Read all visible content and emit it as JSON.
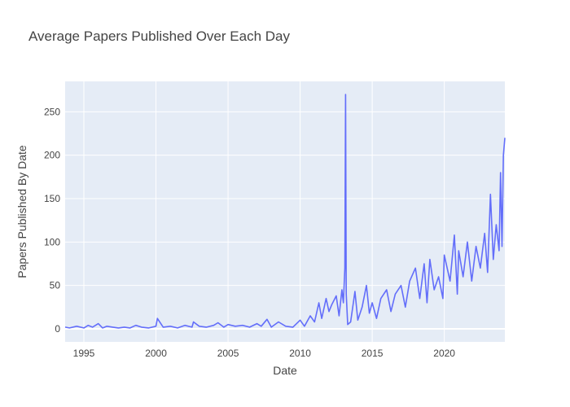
{
  "chart_data": {
    "type": "line",
    "title": "Average Papers Published Over Each Day",
    "xlabel": "Date",
    "ylabel": "Papers Published By Date",
    "xlim": [
      1993.7,
      2024.2
    ],
    "ylim": [
      -15,
      285
    ],
    "x_ticks": [
      1995,
      2000,
      2005,
      2010,
      2015,
      2020
    ],
    "y_ticks": [
      0,
      50,
      100,
      150,
      200,
      250
    ],
    "grid": true,
    "legend": "none",
    "colors": {
      "line": "#636efa",
      "plot_bg": "#e5ecf6",
      "grid": "#ffffff",
      "text": "#444444"
    },
    "series": [
      {
        "x": [
          1993.7,
          1994.0,
          1994.5,
          1995.0,
          1995.3,
          1995.6,
          1996.0,
          1996.3,
          1996.6,
          1997.0,
          1997.4,
          1997.8,
          1998.2,
          1998.6,
          1999.0,
          1999.5,
          2000.0,
          2000.1,
          2000.5,
          2001.0,
          2001.5,
          2002.0,
          2002.5,
          2002.6,
          2003.0,
          2003.5,
          2004.0,
          2004.3,
          2004.7,
          2005.0,
          2005.5,
          2006.0,
          2006.5,
          2007.0,
          2007.3,
          2007.7,
          2008.0,
          2008.5,
          2009.0,
          2009.5,
          2010.0,
          2010.3,
          2010.7,
          2011.0,
          2011.3,
          2011.5,
          2011.8,
          2012.0,
          2012.2,
          2012.5,
          2012.7,
          2012.9,
          2013.0,
          2013.1,
          2013.15,
          2013.2,
          2013.3,
          2013.5,
          2013.8,
          2014.0,
          2014.3,
          2014.6,
          2014.8,
          2015.0,
          2015.3,
          2015.6,
          2016.0,
          2016.3,
          2016.6,
          2017.0,
          2017.3,
          2017.6,
          2018.0,
          2018.3,
          2018.6,
          2018.8,
          2019.0,
          2019.3,
          2019.6,
          2019.9,
          2020.0,
          2020.4,
          2020.7,
          2020.9,
          2021.0,
          2021.3,
          2021.6,
          2021.9,
          2022.2,
          2022.5,
          2022.8,
          2023.0,
          2023.2,
          2023.4,
          2023.6,
          2023.8,
          2023.9,
          2024.0,
          2024.1,
          2024.2
        ],
        "y": [
          2,
          1,
          3,
          1,
          4,
          2,
          6,
          1,
          3,
          2,
          1,
          2,
          1,
          4,
          2,
          1,
          3,
          12,
          2,
          3,
          1,
          4,
          2,
          8,
          3,
          2,
          4,
          7,
          2,
          5,
          3,
          4,
          2,
          6,
          3,
          11,
          2,
          8,
          3,
          2,
          10,
          3,
          15,
          8,
          30,
          12,
          35,
          20,
          28,
          38,
          15,
          45,
          30,
          70,
          270,
          40,
          5,
          8,
          43,
          10,
          25,
          50,
          18,
          30,
          12,
          35,
          45,
          20,
          40,
          50,
          25,
          55,
          70,
          35,
          75,
          30,
          80,
          45,
          60,
          35,
          85,
          55,
          108,
          40,
          90,
          60,
          100,
          55,
          95,
          70,
          110,
          65,
          155,
          80,
          120,
          90,
          180,
          95,
          200,
          220
        ]
      }
    ]
  }
}
